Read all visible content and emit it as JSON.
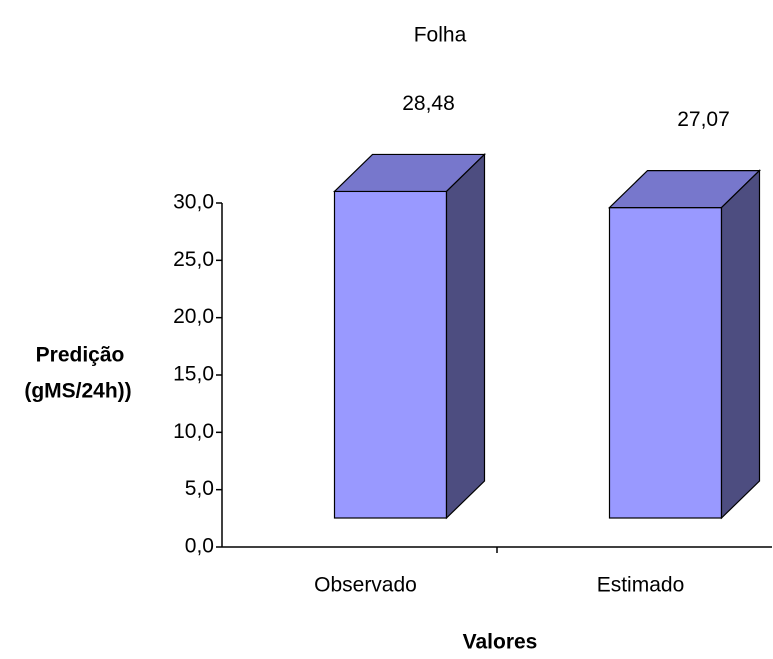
{
  "chart_data": {
    "type": "bar3d",
    "title": "Folha",
    "categories": [
      "Observado",
      "Estimado"
    ],
    "values": [
      28.48,
      27.07
    ],
    "value_labels": [
      "28,48",
      "27,07"
    ],
    "color": "#9999ff",
    "ylim": [
      0,
      30
    ],
    "yticks": [
      {
        "value": 0,
        "label": "0,0"
      },
      {
        "value": 5,
        "label": "5,0"
      },
      {
        "value": 10,
        "label": "10,0"
      },
      {
        "value": 15,
        "label": "15,0"
      },
      {
        "value": 20,
        "label": "20,0"
      },
      {
        "value": 25,
        "label": "25,0"
      },
      {
        "value": 30,
        "label": "30,0"
      }
    ],
    "y_label": [
      "Predição",
      "(gMS/24h))"
    ],
    "x_label": "Valores",
    "grid": false
  }
}
